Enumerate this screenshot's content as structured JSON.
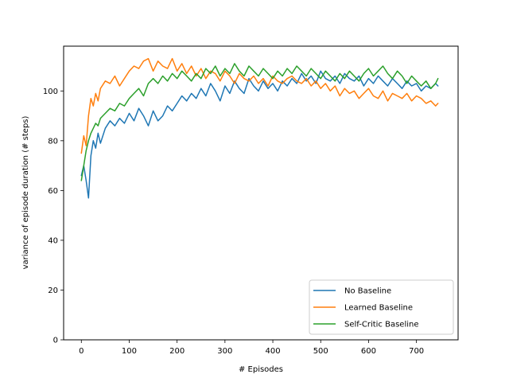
{
  "chart_data": {
    "type": "line",
    "xlabel": "# Episodes",
    "ylabel": "variance of episode duration (# steps)",
    "xlim": [
      -37,
      787
    ],
    "ylim": [
      0,
      118
    ],
    "xticks": [
      0,
      100,
      200,
      300,
      400,
      500,
      600,
      700
    ],
    "yticks": [
      0,
      20,
      40,
      60,
      80,
      100
    ],
    "grid": false,
    "legend_position": "lower-right",
    "series": [
      {
        "name": "No Baseline",
        "color": "#1f77b4",
        "x": [
          0,
          5,
          10,
          15,
          20,
          25,
          30,
          35,
          40,
          50,
          60,
          70,
          80,
          90,
          100,
          110,
          120,
          130,
          140,
          150,
          160,
          170,
          180,
          190,
          200,
          210,
          220,
          230,
          240,
          250,
          260,
          270,
          280,
          290,
          300,
          310,
          320,
          330,
          340,
          350,
          360,
          370,
          380,
          390,
          400,
          410,
          420,
          430,
          440,
          450,
          460,
          470,
          480,
          490,
          500,
          510,
          520,
          530,
          540,
          550,
          560,
          570,
          580,
          590,
          600,
          610,
          620,
          630,
          640,
          650,
          660,
          670,
          680,
          690,
          700,
          710,
          720,
          730,
          740,
          745
        ],
        "values": [
          66,
          70,
          64,
          57,
          74,
          80,
          77,
          83,
          79,
          85,
          88,
          86,
          89,
          87,
          91,
          88,
          93,
          90,
          86,
          92,
          88,
          90,
          94,
          92,
          95,
          98,
          96,
          99,
          97,
          101,
          98,
          103,
          100,
          96,
          102,
          99,
          104,
          101,
          99,
          105,
          102,
          100,
          104,
          101,
          103,
          100,
          104,
          102,
          105,
          103,
          107,
          104,
          106,
          103,
          108,
          105,
          104,
          106,
          103,
          107,
          105,
          104,
          106,
          102,
          105,
          103,
          106,
          104,
          102,
          105,
          103,
          101,
          104,
          102,
          103,
          100,
          102,
          101,
          103,
          102
        ]
      },
      {
        "name": "Learned Baseline",
        "color": "#ff7f0e",
        "x": [
          0,
          5,
          10,
          15,
          20,
          25,
          30,
          35,
          40,
          50,
          60,
          70,
          80,
          90,
          100,
          110,
          120,
          130,
          140,
          150,
          160,
          170,
          180,
          190,
          200,
          210,
          220,
          230,
          240,
          250,
          260,
          270,
          280,
          290,
          300,
          310,
          320,
          330,
          340,
          350,
          360,
          370,
          380,
          390,
          400,
          410,
          420,
          430,
          440,
          450,
          460,
          470,
          480,
          490,
          500,
          510,
          520,
          530,
          540,
          550,
          560,
          570,
          580,
          590,
          600,
          610,
          620,
          630,
          640,
          650,
          660,
          670,
          680,
          690,
          700,
          710,
          720,
          730,
          740,
          745
        ],
        "values": [
          75,
          82,
          78,
          90,
          97,
          94,
          99,
          96,
          101,
          104,
          103,
          106,
          102,
          105,
          108,
          110,
          109,
          112,
          113,
          108,
          112,
          110,
          109,
          113,
          108,
          111,
          107,
          110,
          106,
          109,
          105,
          108,
          107,
          104,
          108,
          106,
          103,
          107,
          105,
          104,
          106,
          103,
          105,
          102,
          106,
          104,
          103,
          105,
          106,
          104,
          103,
          105,
          102,
          104,
          101,
          103,
          100,
          102,
          98,
          101,
          99,
          100,
          97,
          99,
          101,
          98,
          97,
          100,
          96,
          99,
          98,
          97,
          99,
          96,
          98,
          97,
          95,
          96,
          94,
          95
        ]
      },
      {
        "name": "Self-Critic Baseline",
        "color": "#2ca02c",
        "x": [
          0,
          5,
          10,
          15,
          20,
          25,
          30,
          35,
          40,
          50,
          60,
          70,
          80,
          90,
          100,
          110,
          120,
          130,
          140,
          150,
          160,
          170,
          180,
          190,
          200,
          210,
          220,
          230,
          240,
          250,
          260,
          270,
          280,
          290,
          300,
          310,
          320,
          330,
          340,
          350,
          360,
          370,
          380,
          390,
          400,
          410,
          420,
          430,
          440,
          450,
          460,
          470,
          480,
          490,
          500,
          510,
          520,
          530,
          540,
          550,
          560,
          570,
          580,
          590,
          600,
          610,
          620,
          630,
          640,
          650,
          660,
          670,
          680,
          690,
          700,
          710,
          720,
          730,
          740,
          745
        ],
        "values": [
          64,
          70,
          76,
          80,
          83,
          85,
          87,
          86,
          89,
          91,
          93,
          92,
          95,
          94,
          97,
          99,
          101,
          98,
          103,
          105,
          103,
          106,
          104,
          107,
          105,
          108,
          106,
          104,
          107,
          105,
          109,
          107,
          110,
          106,
          109,
          107,
          111,
          108,
          106,
          110,
          108,
          106,
          109,
          107,
          105,
          108,
          106,
          109,
          107,
          110,
          108,
          106,
          109,
          107,
          105,
          108,
          106,
          104,
          107,
          105,
          108,
          106,
          104,
          107,
          109,
          106,
          108,
          110,
          107,
          105,
          108,
          106,
          103,
          106,
          104,
          102,
          104,
          101,
          103,
          105
        ]
      }
    ]
  }
}
